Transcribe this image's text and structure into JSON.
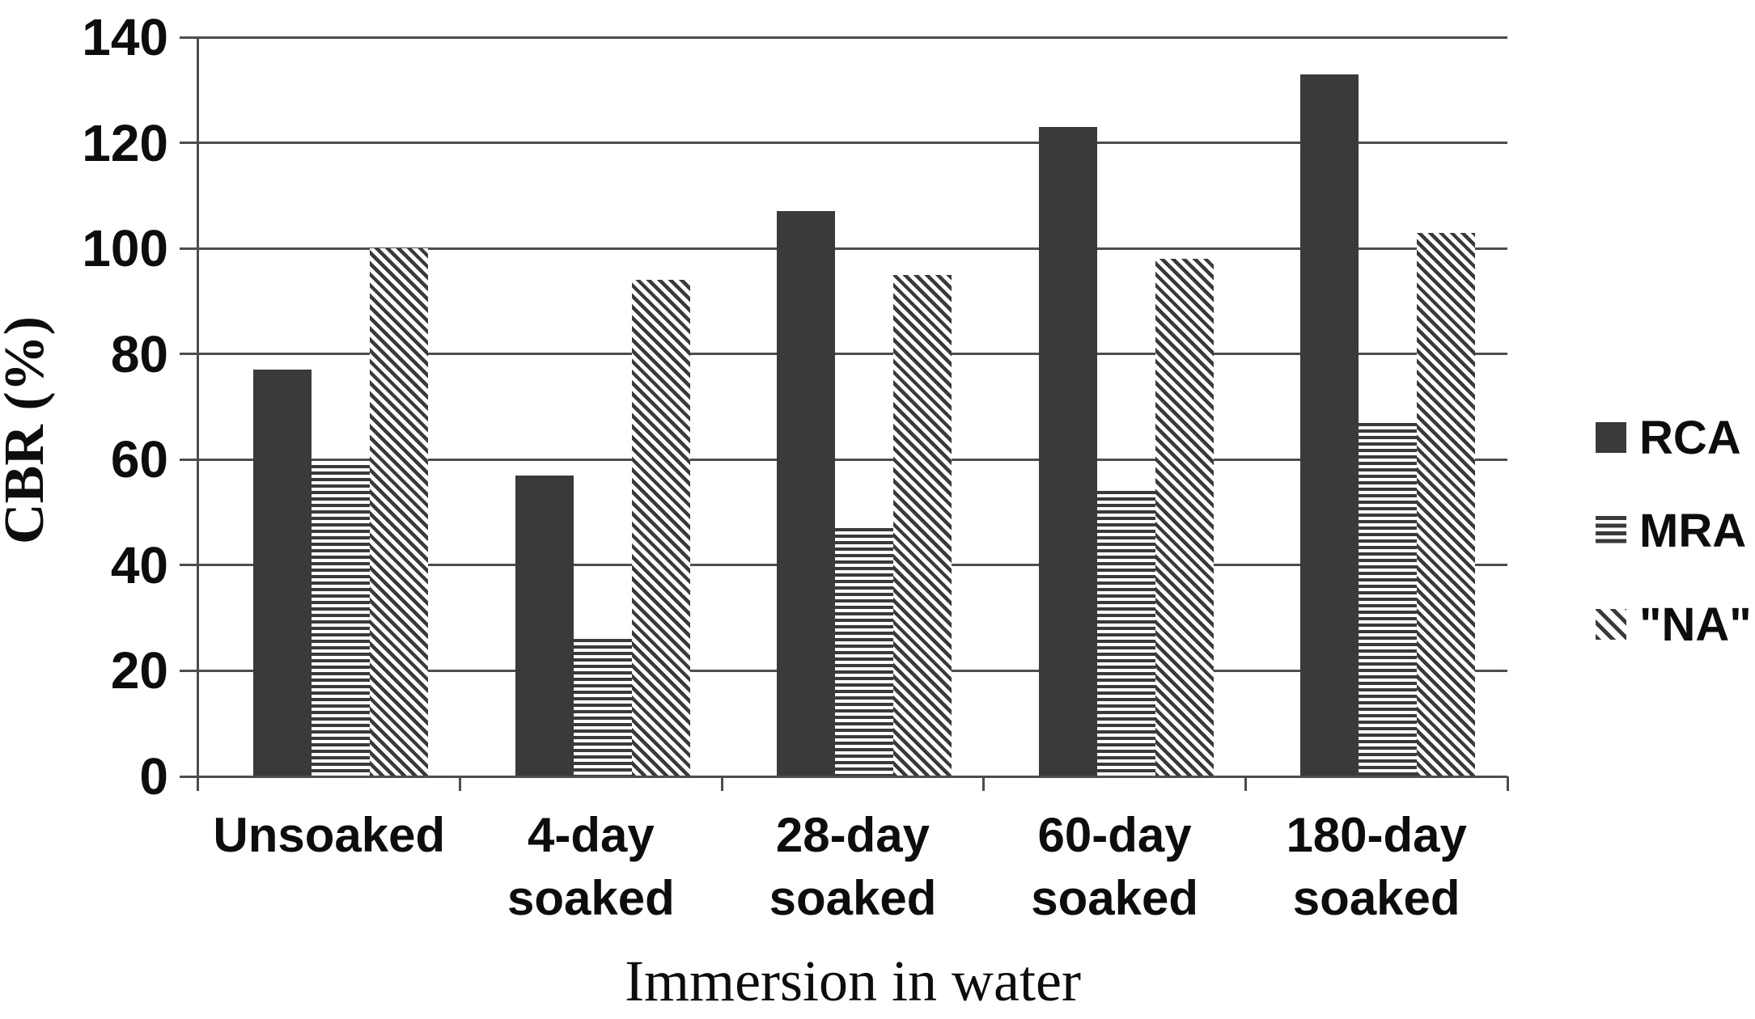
{
  "chart_data": {
    "type": "bar",
    "title": "",
    "xlabel": "Immersion in water",
    "ylabel": "CBR (%)",
    "categories": [
      "Unsoaked",
      "4-day soaked",
      "28-day soaked",
      "60-day soaked",
      "180-day soaked"
    ],
    "category_label_lines": [
      [
        "Unsoaked"
      ],
      [
        "4-day",
        "soaked"
      ],
      [
        "28-day",
        "soaked"
      ],
      [
        "60-day",
        "soaked"
      ],
      [
        "180-day",
        "soaked"
      ]
    ],
    "series": [
      {
        "name": "RCA",
        "pattern": "solid",
        "values": [
          77,
          57,
          107,
          123,
          133
        ]
      },
      {
        "name": "MRA",
        "pattern": "horizontal-stripes",
        "values": [
          59,
          26,
          47,
          54,
          67
        ]
      },
      {
        "name": "\"NA\"",
        "pattern": "diagonal-stripes",
        "values": [
          100,
          94,
          95,
          98,
          103
        ]
      }
    ],
    "ylim": [
      0,
      140
    ],
    "ytick_interval": 20,
    "ytick_labels": [
      "0",
      "20",
      "40",
      "60",
      "80",
      "100",
      "120",
      "140"
    ],
    "grid": "horizontal",
    "legend_position": "right",
    "bar_color": "#3a3a3a",
    "grid_color": "#4d4d4d",
    "background_color": "#ffffff"
  }
}
